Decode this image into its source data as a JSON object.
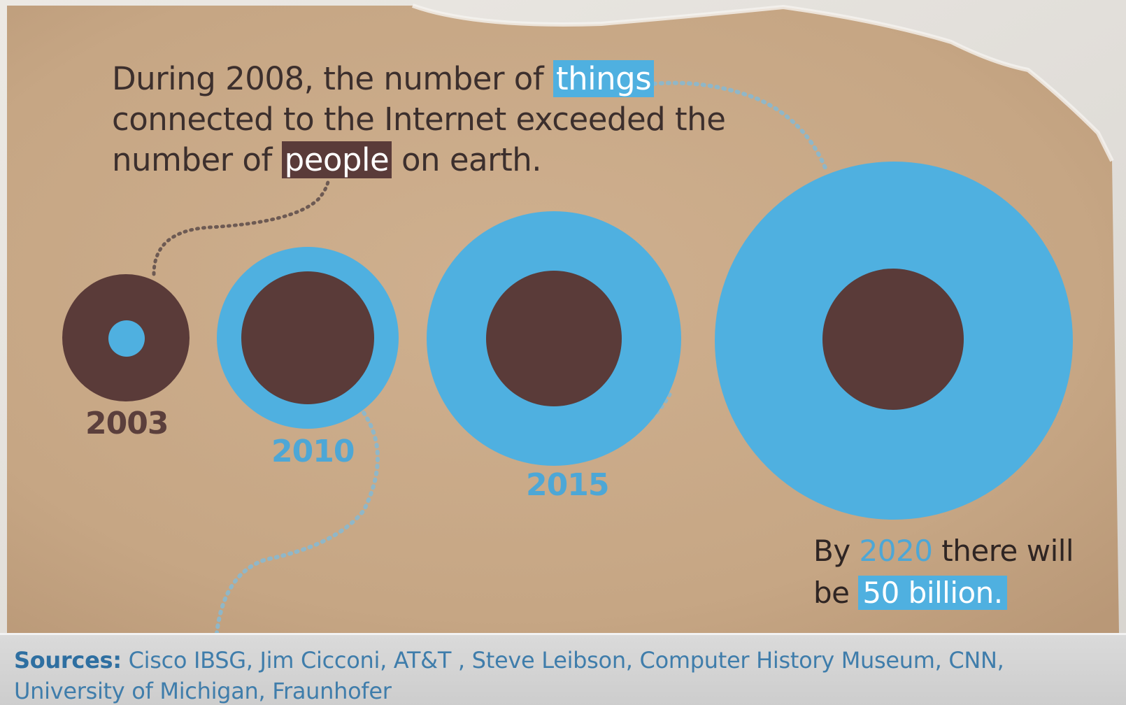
{
  "headline": {
    "before_things": "During 2008, the number of ",
    "things": "things",
    "middle": "connected to the Internet exceeded the number of ",
    "people": "people",
    "after_people": " on earth."
  },
  "years": {
    "y2003": "2003",
    "y2010": "2010",
    "y2015": "2015"
  },
  "footnote": {
    "prefix": "By ",
    "year": "2020",
    "middle": " there will be ",
    "amount": "50 billion."
  },
  "sources": {
    "label": "Sources:",
    "text": " Cisco IBSG,  Jim Cicconi,  AT&T , Steve Leibson, Computer History Museum, CNN, University of Michigan, Fraunhofer"
  },
  "colors": {
    "things_blue": "#4fb0e0",
    "people_brown": "#5a3b39",
    "paper_tan": "#c9a987"
  }
}
